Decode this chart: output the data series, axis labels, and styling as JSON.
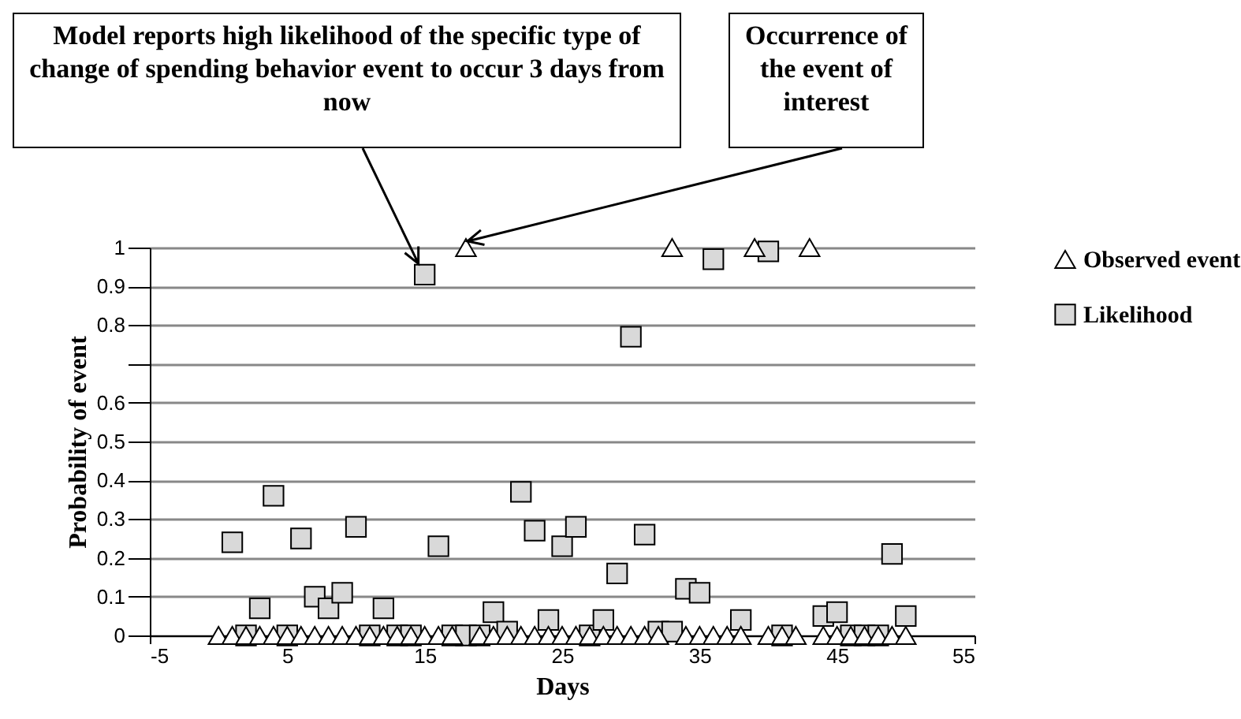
{
  "chart_data": {
    "type": "scatter",
    "xlabel": "Days",
    "ylabel": "Probability of event",
    "xlim": [
      -5,
      55
    ],
    "xticks": [
      -5,
      5,
      15,
      25,
      35,
      45,
      55
    ],
    "ylim": [
      0,
      1
    ],
    "yticks": [
      0,
      0.1,
      0.2,
      0.3,
      0.4,
      0.5,
      0.6,
      {
        "value": 0.7,
        "label": null
      },
      0.8,
      0.9,
      1
    ],
    "grid": "y",
    "legend": "right",
    "annotations": [
      {
        "text": "Model reports high likelihood of the specific type of change of spending behavior event to occur 3 days from now",
        "x": 15,
        "y": 0.93
      },
      {
        "text": "Occurrence of the event of interest",
        "x": 18,
        "y": 1
      }
    ],
    "series": [
      {
        "name": "Observed event",
        "color": "#ffffff",
        "marker": "triangle",
        "x": [
          0,
          1,
          2,
          3,
          4,
          5,
          6,
          7,
          8,
          9,
          10,
          11,
          12,
          13,
          14,
          15,
          16,
          17,
          18,
          19,
          20,
          21,
          22,
          23,
          24,
          25,
          26,
          27,
          28,
          29,
          30,
          31,
          32,
          33,
          34,
          35,
          36,
          37,
          38,
          39,
          40,
          41,
          42,
          43,
          44,
          45,
          46,
          47,
          48,
          49,
          50
        ],
        "values": [
          0,
          0,
          0,
          0,
          0,
          0,
          0,
          0,
          0,
          0,
          0,
          0,
          0,
          0,
          0,
          0,
          0,
          0,
          1,
          0,
          0,
          0,
          0,
          0,
          0,
          0,
          0,
          0,
          0,
          0,
          0,
          0,
          0,
          1,
          0,
          0,
          0,
          0,
          0,
          1,
          0,
          0,
          0,
          1,
          0,
          0,
          0,
          0,
          0,
          0,
          0
        ]
      },
      {
        "name": "Likelihood",
        "color": "#d9d9d9",
        "marker": "square",
        "x": [
          1,
          2,
          3,
          4,
          5,
          6,
          7,
          8,
          9,
          10,
          11,
          12,
          13,
          14,
          15,
          16,
          17,
          18,
          19,
          20,
          21,
          22,
          23,
          24,
          25,
          26,
          27,
          28,
          29,
          30,
          31,
          32,
          33,
          34,
          35,
          36,
          38,
          40,
          41,
          44,
          45,
          46,
          47,
          48,
          49,
          50
        ],
        "values": [
          0.24,
          0,
          0.07,
          0.36,
          0,
          0.25,
          0.1,
          0.07,
          0.11,
          0.28,
          0,
          0.07,
          0,
          0,
          0.93,
          0.23,
          0,
          0,
          0,
          0.06,
          0.01,
          0.37,
          0.27,
          0.04,
          0.23,
          0.28,
          0,
          0.04,
          0.16,
          0.77,
          0.26,
          0.01,
          0.01,
          0.12,
          0.11,
          0.97,
          0.04,
          0.99,
          0,
          0.05,
          0.06,
          0,
          0,
          0,
          0.21,
          0.05
        ]
      }
    ]
  }
}
